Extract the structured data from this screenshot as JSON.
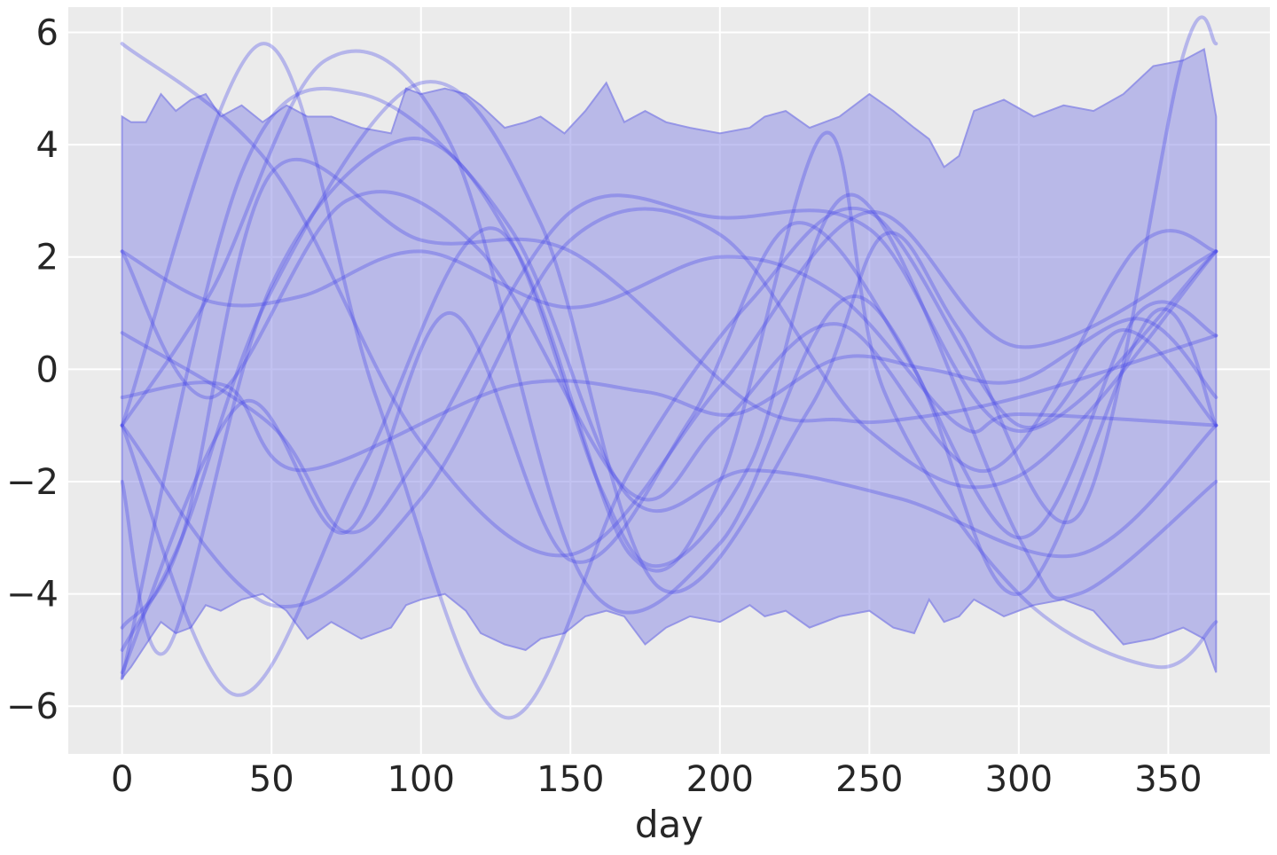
{
  "chart_data": {
    "type": "line",
    "title": "",
    "xlabel": "day",
    "ylabel": "",
    "xlim": [
      -18,
      384
    ],
    "ylim": [
      -6.85,
      6.45
    ],
    "xticks": [
      0,
      50,
      100,
      150,
      200,
      250,
      300,
      350
    ],
    "yticks": [
      -6,
      -4,
      -2,
      0,
      2,
      4,
      6
    ],
    "xtick_labels": [
      "0",
      "50",
      "100",
      "150",
      "200",
      "250",
      "300",
      "350"
    ],
    "ytick_labels": [
      "−6",
      "−4",
      "−2",
      "0",
      "2",
      "4",
      "6"
    ],
    "grid": true,
    "background": "#ebebeb",
    "grid_color": "#ffffff",
    "band_color": "#8f8fe6",
    "line_color": "#4444e8",
    "band": {
      "x": [
        0,
        3,
        8,
        13,
        18,
        23,
        28,
        33,
        40,
        47,
        55,
        62,
        70,
        80,
        90,
        95,
        100,
        108,
        115,
        120,
        128,
        135,
        140,
        148,
        155,
        162,
        168,
        175,
        182,
        190,
        200,
        210,
        215,
        222,
        230,
        240,
        250,
        258,
        265,
        270,
        275,
        280,
        285,
        295,
        305,
        315,
        325,
        335,
        345,
        355,
        362,
        366
      ],
      "upper": [
        4.5,
        4.4,
        4.4,
        4.9,
        4.6,
        4.8,
        4.9,
        4.5,
        4.7,
        4.4,
        4.7,
        4.5,
        4.5,
        4.3,
        4.2,
        5.0,
        4.9,
        5.0,
        4.9,
        4.7,
        4.3,
        4.4,
        4.5,
        4.2,
        4.6,
        5.1,
        4.4,
        4.6,
        4.4,
        4.3,
        4.2,
        4.3,
        4.5,
        4.6,
        4.3,
        4.5,
        4.9,
        4.6,
        4.3,
        4.1,
        3.6,
        3.8,
        4.6,
        4.8,
        4.5,
        4.7,
        4.6,
        4.9,
        5.4,
        5.5,
        5.7,
        4.5
      ],
      "lower": [
        -5.5,
        -5.3,
        -4.9,
        -4.5,
        -4.7,
        -4.6,
        -4.2,
        -4.3,
        -4.1,
        -4.0,
        -4.3,
        -4.8,
        -4.5,
        -4.8,
        -4.6,
        -4.2,
        -4.1,
        -4.0,
        -4.3,
        -4.7,
        -4.9,
        -5.0,
        -4.8,
        -4.7,
        -4.4,
        -4.3,
        -4.4,
        -4.9,
        -4.6,
        -4.4,
        -4.5,
        -4.2,
        -4.4,
        -4.3,
        -4.6,
        -4.4,
        -4.3,
        -4.6,
        -4.7,
        -4.1,
        -4.5,
        -4.4,
        -4.1,
        -4.4,
        -4.2,
        -4.1,
        -4.3,
        -4.9,
        -4.8,
        -4.6,
        -4.8,
        -5.4
      ]
    },
    "series": [
      {
        "x": [
          0,
          50,
          100,
          150,
          200,
          250,
          300,
          366
        ],
        "y": [
          5.8,
          3.6,
          -1.3,
          -3.3,
          -0.3,
          2.8,
          0.4,
          2.1
        ]
      },
      {
        "x": [
          0,
          40,
          80,
          130,
          170,
          210,
          260,
          320,
          366
        ],
        "y": [
          -5.5,
          3.5,
          4.9,
          2.5,
          -2.3,
          -1.8,
          -2.3,
          -3.3,
          -1.0
        ]
      },
      {
        "x": [
          0,
          50,
          100,
          150,
          200,
          250,
          300,
          366
        ],
        "y": [
          -1.0,
          -4.2,
          -2.3,
          2.3,
          2.4,
          -1.1,
          -1.9,
          2.1
        ]
      },
      {
        "x": [
          0,
          20,
          50,
          100,
          150,
          210,
          240,
          260,
          300,
          366
        ],
        "y": [
          -4.6,
          -3.0,
          3.5,
          2.3,
          2.1,
          -0.6,
          -0.9,
          -0.9,
          -0.5,
          0.6
        ]
      },
      {
        "x": [
          0,
          50,
          75,
          100,
          150,
          200,
          250,
          300,
          366
        ],
        "y": [
          0.65,
          -1.0,
          -2.9,
          -1.5,
          2.8,
          2.7,
          2.5,
          -1.1,
          2.1
        ]
      },
      {
        "x": [
          0,
          30,
          60,
          100,
          150,
          200,
          240,
          280,
          300,
          366
        ],
        "y": [
          2.1,
          1.2,
          1.3,
          2.1,
          1.1,
          2.0,
          1.3,
          -1.0,
          -0.8,
          -1.0
        ]
      },
      {
        "x": [
          0,
          15,
          50,
          95,
          130,
          160,
          180,
          210,
          245,
          300,
          320,
          366
        ],
        "y": [
          -2.0,
          -5.0,
          1.5,
          4.1,
          2.3,
          -2.1,
          -3.5,
          -1.7,
          3.1,
          -3.0,
          -4.0,
          -2.0
        ]
      },
      {
        "x": [
          0,
          30,
          75,
          120,
          170,
          200,
          240,
          290,
          340,
          366
        ],
        "y": [
          2.1,
          -0.5,
          3.0,
          2.1,
          -2.2,
          -1.0,
          0.8,
          -1.8,
          2.2,
          2.1
        ]
      },
      {
        "x": [
          0,
          35,
          60,
          130,
          175,
          205,
          240,
          270,
          300,
          340,
          366
        ],
        "y": [
          -0.5,
          -0.3,
          -1.8,
          -0.3,
          -0.4,
          -0.8,
          0.2,
          0.0,
          -0.2,
          0.9,
          -0.5
        ]
      },
      {
        "x": [
          0,
          40,
          75,
          110,
          150,
          190,
          225,
          265,
          300,
          345,
          366
        ],
        "y": [
          -5.4,
          -0.6,
          -2.9,
          1.0,
          -3.4,
          -0.9,
          2.6,
          0.0,
          -4.0,
          1.0,
          -1.0
        ]
      },
      {
        "x": [
          0,
          38,
          80,
          125,
          170,
          200,
          235,
          255,
          300,
          346,
          366
        ],
        "y": [
          -1.0,
          -5.8,
          -1.8,
          2.5,
          -3.3,
          -2.0,
          4.2,
          -0.4,
          -4.0,
          -5.3,
          -4.5
        ]
      },
      {
        "x": [
          0,
          47,
          85,
          128,
          170,
          210,
          250,
          300,
          335,
          366
        ],
        "y": [
          -1.0,
          5.8,
          -0.5,
          -6.2,
          -1.8,
          1.2,
          2.8,
          -1.0,
          0.7,
          -1.0
        ]
      },
      {
        "x": [
          0,
          30,
          68,
          110,
          155,
          200,
          245,
          300,
          340,
          366
        ],
        "y": [
          -1.0,
          1.4,
          5.5,
          4.0,
          -3.8,
          -3.1,
          1.3,
          -3.0,
          1.0,
          0.6
        ]
      },
      {
        "x": [
          0,
          20,
          50,
          100,
          140,
          180,
          230,
          255,
          280,
          320,
          355,
          366
        ],
        "y": [
          -5.0,
          -3.0,
          1.4,
          5.1,
          2.6,
          -3.9,
          -0.7,
          2.4,
          0.7,
          -2.6,
          5.6,
          5.8
        ]
      }
    ]
  }
}
